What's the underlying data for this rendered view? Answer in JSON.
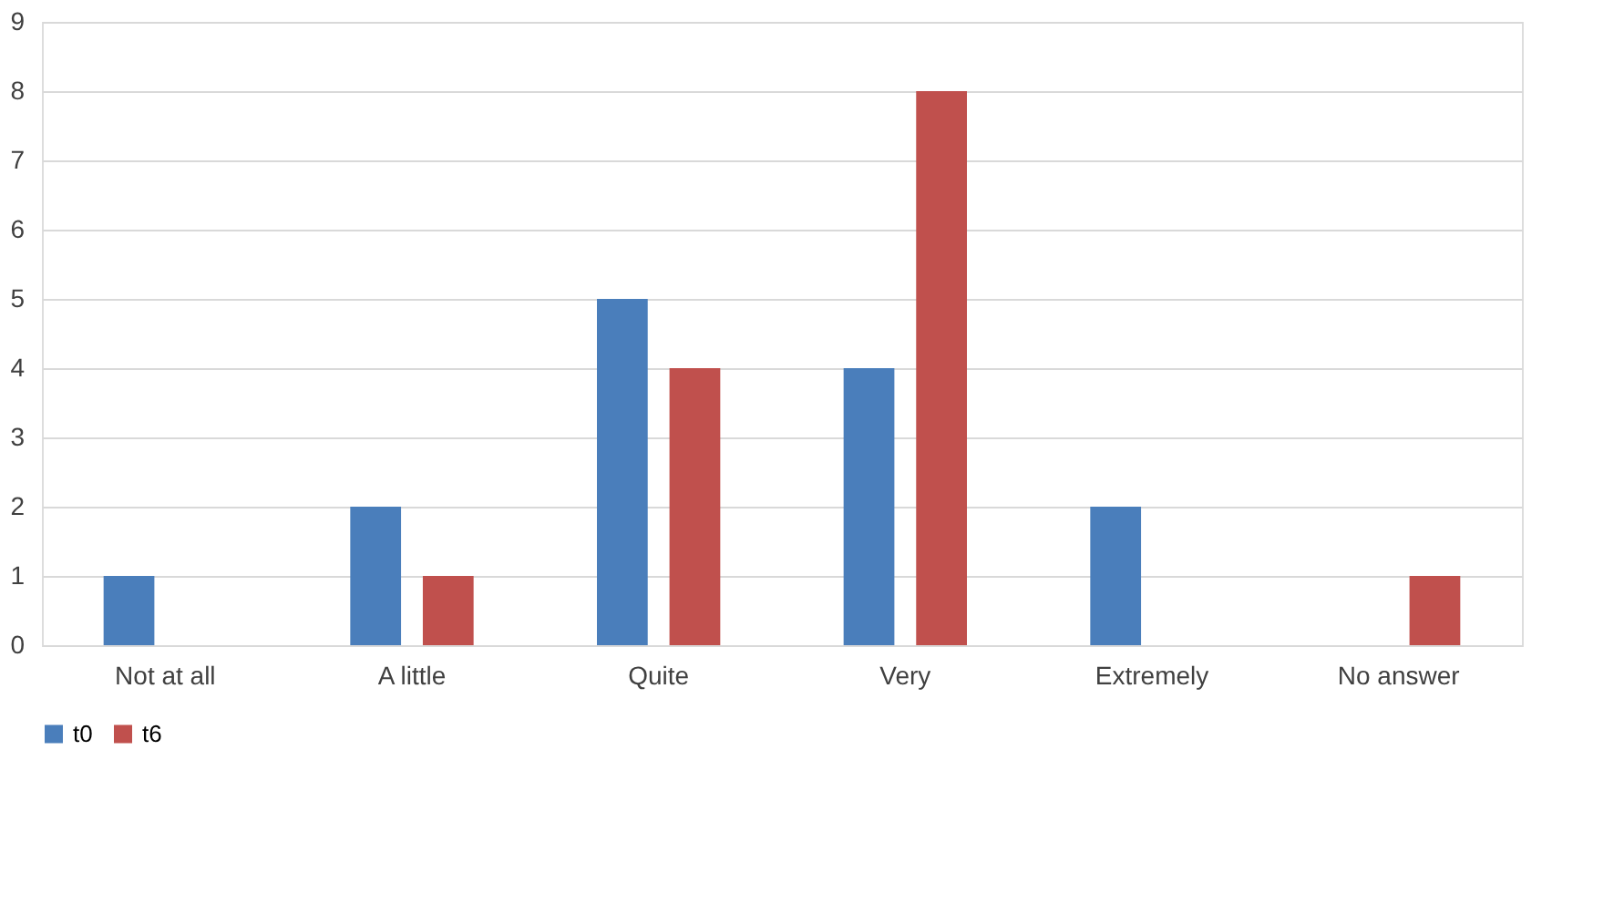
{
  "chart_data": {
    "type": "bar",
    "categories": [
      "Not at all",
      "A little",
      "Quite",
      "Very",
      "Extremely",
      "No answer"
    ],
    "series": [
      {
        "name": "t0",
        "color": "#4a7ebb",
        "values": [
          1,
          2,
          5,
          4,
          2,
          0
        ]
      },
      {
        "name": "t6",
        "color": "#c0504d",
        "values": [
          0,
          1,
          4,
          8,
          0,
          1
        ]
      }
    ],
    "ylim": [
      0,
      9
    ],
    "yticks": [
      0,
      1,
      2,
      3,
      4,
      5,
      6,
      7,
      8,
      9
    ],
    "grid": "y",
    "legend": "bottom"
  }
}
